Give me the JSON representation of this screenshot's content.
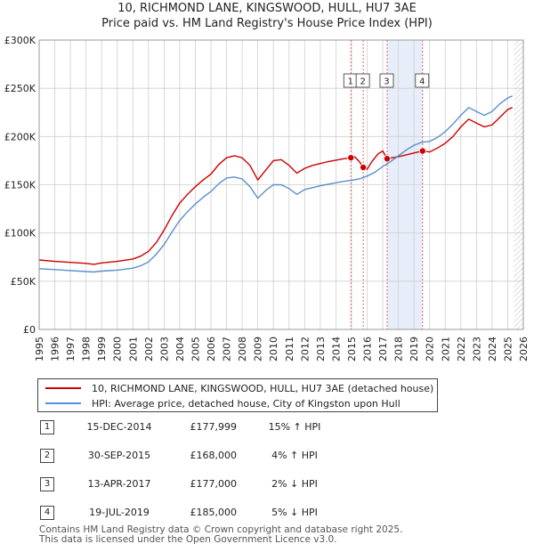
{
  "title_line1": "10, RICHMOND LANE, KINGSWOOD, HULL, HU7 3AE",
  "title_line2": "Price paid vs. HM Land Registry's House Price Index (HPI)",
  "colors": {
    "property": "#cc0000",
    "hpi": "#5a8fcc",
    "band": "#e8eef9",
    "vline": "#e06070",
    "grid": "#cfcfcf"
  },
  "chart_data": {
    "type": "line",
    "xlim": [
      1995,
      2026
    ],
    "ylim": [
      0,
      300000
    ],
    "y_ticks": [
      {
        "value": 0,
        "label": "£0"
      },
      {
        "value": 50000,
        "label": "£50K"
      },
      {
        "value": 100000,
        "label": "£100K"
      },
      {
        "value": 150000,
        "label": "£150K"
      },
      {
        "value": 200000,
        "label": "£200K"
      },
      {
        "value": 250000,
        "label": "£250K"
      },
      {
        "value": 300000,
        "label": "£300K"
      }
    ],
    "x_ticks": [
      "1995",
      "1996",
      "1997",
      "1998",
      "1999",
      "2000",
      "2001",
      "2002",
      "2003",
      "2004",
      "2005",
      "2006",
      "2007",
      "2008",
      "2009",
      "2010",
      "2011",
      "2012",
      "2013",
      "2014",
      "2015",
      "2016",
      "2017",
      "2018",
      "2019",
      "2020",
      "2021",
      "2022",
      "2023",
      "2024",
      "2025",
      "2026"
    ],
    "series": [
      {
        "name": "10, RICHMOND LANE, KINGSWOOD, HULL, HU7 3AE (detached house)",
        "color": "#cc0000",
        "points": [
          [
            1995,
            72000
          ],
          [
            1996,
            70500
          ],
          [
            1997,
            69500
          ],
          [
            1998,
            68500
          ],
          [
            1998.5,
            67500
          ],
          [
            1999,
            69000
          ],
          [
            2000,
            70500
          ],
          [
            2001,
            73000
          ],
          [
            2001.5,
            76000
          ],
          [
            2002,
            81000
          ],
          [
            2002.5,
            90000
          ],
          [
            2003,
            103000
          ],
          [
            2003.5,
            118000
          ],
          [
            2004,
            131000
          ],
          [
            2004.5,
            140000
          ],
          [
            2005,
            148000
          ],
          [
            2005.5,
            155000
          ],
          [
            2006,
            161000
          ],
          [
            2006.5,
            171000
          ],
          [
            2007,
            178000
          ],
          [
            2007.5,
            180000
          ],
          [
            2008,
            178000
          ],
          [
            2008.5,
            170000
          ],
          [
            2009,
            155000
          ],
          [
            2009.5,
            165000
          ],
          [
            2010,
            175000
          ],
          [
            2010.5,
            176000
          ],
          [
            2011,
            170000
          ],
          [
            2011.5,
            162000
          ],
          [
            2012,
            167000
          ],
          [
            2012.5,
            170000
          ],
          [
            2013,
            172000
          ],
          [
            2013.5,
            174000
          ],
          [
            2014,
            175500
          ],
          [
            2014.5,
            177000
          ],
          [
            2014.96,
            177999
          ],
          [
            2015,
            178000
          ],
          [
            2015.2,
            179000
          ],
          [
            2015.5,
            174000
          ],
          [
            2015.75,
            168000
          ],
          [
            2016,
            166000
          ],
          [
            2016.3,
            174000
          ],
          [
            2016.7,
            182000
          ],
          [
            2017,
            185000
          ],
          [
            2017.28,
            177000
          ],
          [
            2017.6,
            178000
          ],
          [
            2018,
            179000
          ],
          [
            2018.5,
            181000
          ],
          [
            2019,
            183000
          ],
          [
            2019.55,
            185000
          ],
          [
            2020,
            184000
          ],
          [
            2020.5,
            188000
          ],
          [
            2021,
            193000
          ],
          [
            2021.5,
            200000
          ],
          [
            2022,
            210000
          ],
          [
            2022.5,
            218000
          ],
          [
            2023,
            214000
          ],
          [
            2023.5,
            210000
          ],
          [
            2024,
            212000
          ],
          [
            2024.5,
            220000
          ],
          [
            2025,
            228000
          ],
          [
            2025.3,
            230000
          ]
        ]
      },
      {
        "name": "HPI: Average price, detached house, City of Kingston upon Hull",
        "color": "#5a8fcc",
        "points": [
          [
            1995,
            63000
          ],
          [
            1996,
            62000
          ],
          [
            1997,
            61000
          ],
          [
            1998,
            60000
          ],
          [
            1998.5,
            59500
          ],
          [
            1999,
            60500
          ],
          [
            2000,
            61500
          ],
          [
            2001,
            63500
          ],
          [
            2001.5,
            66000
          ],
          [
            2002,
            70000
          ],
          [
            2002.5,
            78000
          ],
          [
            2003,
            88000
          ],
          [
            2003.5,
            101000
          ],
          [
            2004,
            113000
          ],
          [
            2004.5,
            122000
          ],
          [
            2005,
            130000
          ],
          [
            2005.5,
            137000
          ],
          [
            2006,
            143000
          ],
          [
            2006.5,
            151000
          ],
          [
            2007,
            157000
          ],
          [
            2007.5,
            158000
          ],
          [
            2008,
            156000
          ],
          [
            2008.5,
            148000
          ],
          [
            2009,
            136000
          ],
          [
            2009.5,
            144000
          ],
          [
            2010,
            150000
          ],
          [
            2010.5,
            150000
          ],
          [
            2011,
            146000
          ],
          [
            2011.5,
            140000
          ],
          [
            2012,
            145000
          ],
          [
            2012.5,
            147000
          ],
          [
            2013,
            149000
          ],
          [
            2013.5,
            150500
          ],
          [
            2014,
            152000
          ],
          [
            2014.5,
            153500
          ],
          [
            2015,
            154500
          ],
          [
            2015.5,
            156000
          ],
          [
            2016,
            159000
          ],
          [
            2016.5,
            163000
          ],
          [
            2017,
            169000
          ],
          [
            2017.5,
            174000
          ],
          [
            2018,
            180000
          ],
          [
            2018.5,
            186000
          ],
          [
            2019,
            191000
          ],
          [
            2019.5,
            194000
          ],
          [
            2020,
            195000
          ],
          [
            2020.5,
            199000
          ],
          [
            2021,
            205000
          ],
          [
            2021.5,
            213000
          ],
          [
            2022,
            222000
          ],
          [
            2022.5,
            230000
          ],
          [
            2023,
            226000
          ],
          [
            2023.5,
            222000
          ],
          [
            2024,
            226000
          ],
          [
            2024.5,
            234000
          ],
          [
            2025,
            240000
          ],
          [
            2025.3,
            242000
          ]
        ]
      }
    ],
    "sales": [
      {
        "num": "1",
        "x": 2014.96,
        "price": 177999,
        "date": "15-DEC-2014",
        "price_label": "£177,999",
        "hpi": "15% ↑ HPI"
      },
      {
        "num": "2",
        "x": 2015.75,
        "price": 168000,
        "date": "30-SEP-2015",
        "price_label": "£168,000",
        "hpi": "4% ↑ HPI"
      },
      {
        "num": "3",
        "x": 2017.28,
        "price": 177000,
        "date": "13-APR-2017",
        "price_label": "£177,000",
        "hpi": "2% ↓ HPI"
      },
      {
        "num": "4",
        "x": 2019.55,
        "price": 185000,
        "date": "19-JUL-2019",
        "price_label": "£185,000",
        "hpi": "5% ↓ HPI"
      }
    ],
    "shaded_band": [
      2017.28,
      2019.55
    ],
    "hatched_from": 2025.4
  },
  "legend": {
    "property_label": "10, RICHMOND LANE, KINGSWOOD, HULL, HU7 3AE (detached house)",
    "hpi_label": "HPI: Average price, detached house, City of Kingston upon Hull"
  },
  "footer": {
    "line1": "Contains HM Land Registry data © Crown copyright and database right 2025.",
    "line2": "This data is licensed under the Open Government Licence v3.0."
  }
}
